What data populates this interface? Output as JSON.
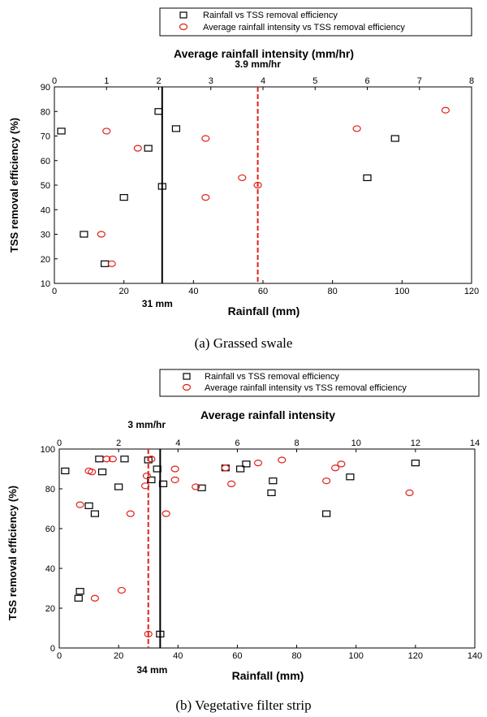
{
  "chart_data": [
    {
      "type": "scatter",
      "caption": "(a)  Grassed  swale",
      "xlabel": "Rainfall (mm)",
      "x2label": "Average rainfall intensity (mm/hr)",
      "ylabel": "TSS removal efficiency (%)",
      "xlim": [
        0,
        120
      ],
      "x2lim": [
        0,
        8
      ],
      "ylim": [
        10,
        90
      ],
      "xticks": [
        0,
        20,
        40,
        60,
        80,
        100,
        120
      ],
      "x2ticks": [
        0,
        1,
        2,
        3,
        4,
        5,
        6,
        7,
        8
      ],
      "yticks": [
        10,
        20,
        30,
        40,
        50,
        60,
        70,
        80,
        90
      ],
      "legend": [
        "Rainfall vs TSS removal efficiency",
        "Average rainfall intensity vs TSS removal efficiency"
      ],
      "series": [
        {
          "name": "Rainfall vs TSS removal efficiency",
          "axis": "bottom",
          "marker": "square",
          "color": "#000000",
          "points": [
            [
              2,
              72
            ],
            [
              8.5,
              30
            ],
            [
              14.5,
              18
            ],
            [
              20,
              45
            ],
            [
              27,
              65
            ],
            [
              30,
              80
            ],
            [
              31,
              49.5
            ],
            [
              35,
              73
            ],
            [
              90,
              53
            ],
            [
              98,
              69
            ]
          ]
        },
        {
          "name": "Average rainfall intensity vs TSS removal efficiency",
          "axis": "top",
          "marker": "ellipse",
          "color": "#e0201b",
          "points": [
            [
              0.9,
              30
            ],
            [
              1.0,
              72
            ],
            [
              1.1,
              18
            ],
            [
              1.6,
              65
            ],
            [
              2.9,
              69
            ],
            [
              2.9,
              45
            ],
            [
              3.6,
              53
            ],
            [
              3.9,
              50
            ],
            [
              5.8,
              73
            ],
            [
              7.5,
              80.5
            ]
          ]
        }
      ],
      "reference_lines": [
        {
          "axis": "bottom",
          "value": 31,
          "label": "31 mm",
          "color": "#000000",
          "style": "solid"
        },
        {
          "axis": "top",
          "value": 3.9,
          "label": "3.9 mm/hr",
          "color": "#e0201b",
          "style": "dashed"
        }
      ]
    },
    {
      "type": "scatter",
      "caption": "(b)  Vegetative  filter  strip",
      "xlabel": "Rainfall (mm)",
      "x2label": "Average rainfall intensity",
      "ylabel": "TSS removal efficiency (%)",
      "xlim": [
        0,
        140
      ],
      "x2lim": [
        0,
        14
      ],
      "ylim": [
        0,
        100
      ],
      "xticks": [
        0,
        20,
        40,
        60,
        80,
        100,
        120,
        140
      ],
      "x2ticks": [
        0,
        2,
        4,
        6,
        8,
        10,
        12,
        14
      ],
      "yticks": [
        0,
        20,
        40,
        60,
        80,
        100
      ],
      "legend": [
        "Rainfall vs TSS removal efficiency",
        "Average rainfall intensity vs TSS removal efficiency"
      ],
      "series": [
        {
          "name": "Rainfall vs TSS removal efficiency",
          "axis": "bottom",
          "marker": "square",
          "color": "#000000",
          "points": [
            [
              2,
              89
            ],
            [
              6.5,
              25
            ],
            [
              7,
              28.5
            ],
            [
              10,
              71.5
            ],
            [
              12,
              67.5
            ],
            [
              13.5,
              95
            ],
            [
              14.5,
              88.5
            ],
            [
              20,
              81
            ],
            [
              22,
              95
            ],
            [
              30,
              94.5
            ],
            [
              31,
              84.5
            ],
            [
              33,
              90
            ],
            [
              34,
              7
            ],
            [
              35,
              82.5
            ],
            [
              48,
              80.5
            ],
            [
              56,
              90.5
            ],
            [
              61,
              90
            ],
            [
              63,
              92.5
            ],
            [
              71.5,
              78
            ],
            [
              72,
              84
            ],
            [
              90,
              67.5
            ],
            [
              98,
              86
            ],
            [
              120,
              93
            ]
          ]
        },
        {
          "name": "Average rainfall intensity vs TSS removal efficiency",
          "axis": "top",
          "marker": "ellipse",
          "color": "#e0201b",
          "points": [
            [
              0.7,
              72
            ],
            [
              1.0,
              89
            ],
            [
              1.1,
              88.5
            ],
            [
              1.2,
              25
            ],
            [
              1.6,
              95
            ],
            [
              1.8,
              95
            ],
            [
              2.1,
              29
            ],
            [
              2.4,
              67.5
            ],
            [
              2.9,
              81.5
            ],
            [
              2.95,
              86.5
            ],
            [
              3.0,
              7
            ],
            [
              3.1,
              95
            ],
            [
              3.6,
              67.5
            ],
            [
              3.9,
              90
            ],
            [
              3.9,
              84.5
            ],
            [
              4.6,
              81
            ],
            [
              5.6,
              90.5
            ],
            [
              5.8,
              82.5
            ],
            [
              6.7,
              93
            ],
            [
              7.5,
              94.5
            ],
            [
              9.0,
              84
            ],
            [
              9.3,
              90.5
            ],
            [
              9.5,
              92.5
            ],
            [
              11.8,
              78
            ]
          ]
        }
      ],
      "reference_lines": [
        {
          "axis": "bottom",
          "value": 34,
          "label": "34 mm",
          "color": "#000000",
          "style": "solid"
        },
        {
          "axis": "top",
          "value": 3,
          "label": "3 mm/hr",
          "color": "#e0201b",
          "style": "dashed"
        }
      ]
    }
  ]
}
